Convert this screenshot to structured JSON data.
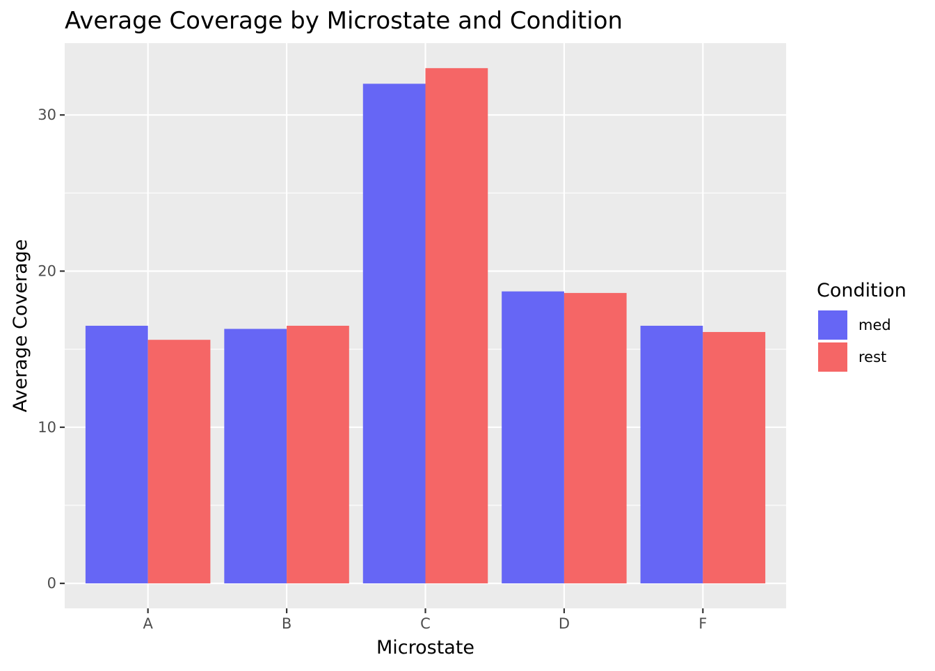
{
  "chart_data": {
    "type": "bar",
    "title": "Average Coverage by Microstate and Condition",
    "xlabel": "Microstate",
    "ylabel": "Average Coverage",
    "categories": [
      "A",
      "B",
      "C",
      "D",
      "F"
    ],
    "series": [
      {
        "name": "med",
        "color": "#6666f5",
        "values": [
          16.5,
          16.3,
          32.0,
          18.7,
          16.5
        ]
      },
      {
        "name": "rest",
        "color": "#f56666",
        "values": [
          15.6,
          16.5,
          33.0,
          18.6,
          16.1
        ]
      }
    ],
    "yticks": [
      0,
      10,
      20,
      30
    ],
    "ylim": [
      -1.6,
      34.6
    ],
    "grid": true,
    "legend": {
      "title": "Condition",
      "position": "right"
    },
    "panel_background": "#ebebeb",
    "grid_color": "#ffffff"
  }
}
